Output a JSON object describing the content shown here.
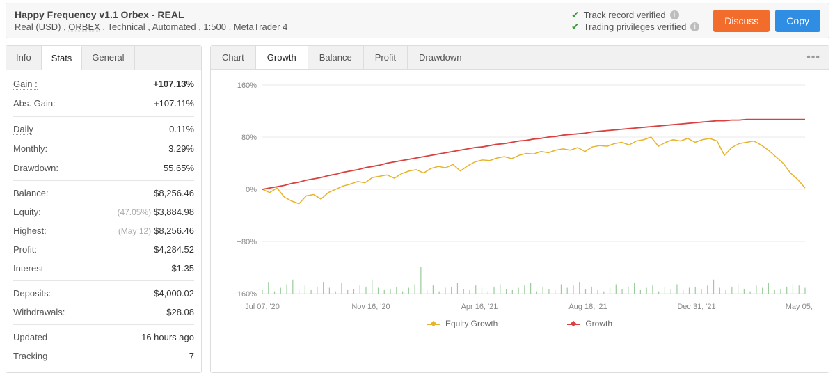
{
  "header": {
    "title": "Happy Frequency v1.1 Orbex - REAL",
    "subtitle_parts": {
      "pre": "Real (USD) , ",
      "broker": "ORBEX",
      "post": " , Technical , Automated , 1:500 , MetaTrader 4"
    },
    "verified_track": "Track record verified",
    "verified_priv": "Trading privileges verified",
    "discuss_label": "Discuss",
    "copy_label": "Copy"
  },
  "sidebar_tabs": {
    "info": "Info",
    "stats": "Stats",
    "general": "General",
    "active": "stats"
  },
  "stats": {
    "gain": {
      "label": "Gain :",
      "value": "+107.13%"
    },
    "abs_gain": {
      "label": "Abs. Gain:",
      "value": "+107.11%"
    },
    "daily": {
      "label": "Daily",
      "value": "0.11%"
    },
    "monthly": {
      "label": "Monthly:",
      "value": "3.29%"
    },
    "drawdown": {
      "label": "Drawdown:",
      "value": "55.65%"
    },
    "balance": {
      "label": "Balance:",
      "value": "$8,256.46"
    },
    "equity": {
      "label": "Equity:",
      "sub": "(47.05%)",
      "value": "$3,884.98"
    },
    "highest": {
      "label": "Highest:",
      "sub": "(May 12)",
      "value": "$8,256.46"
    },
    "profit": {
      "label": "Profit:",
      "value": "$4,284.52"
    },
    "interest": {
      "label": "Interest",
      "value": "-$1.35"
    },
    "deposits": {
      "label": "Deposits:",
      "value": "$4,000.02"
    },
    "withdrawals": {
      "label": "Withdrawals:",
      "value": "$28.08"
    },
    "updated": {
      "label": "Updated",
      "value": "16 hours ago"
    },
    "tracking": {
      "label": "Tracking",
      "value": "7"
    }
  },
  "chart_tabs": {
    "chart": "Chart",
    "growth": "Growth",
    "balance": "Balance",
    "profit": "Profit",
    "drawdown": "Drawdown",
    "active": "growth"
  },
  "chart": {
    "type": "line",
    "ylim": [
      -160,
      160
    ],
    "ytick_step": 80,
    "y_ticks": [
      "160%",
      "80%",
      "0%",
      "−80%",
      "−160%"
    ],
    "x_ticks": [
      "Jul 07, '20",
      "Nov 16, '20",
      "Apr 16, '21",
      "Aug 18, '21",
      "Dec 31, '21",
      "May 05, '22"
    ],
    "background_color": "#ffffff",
    "grid_color": "#e8e8e8",
    "series": {
      "equity_growth": {
        "label": "Equity Growth",
        "color": "#e7b32a",
        "width": 1.5,
        "values": [
          0,
          -5,
          2,
          -12,
          -18,
          -22,
          -10,
          -8,
          -15,
          -5,
          0,
          5,
          8,
          12,
          10,
          18,
          20,
          22,
          17,
          24,
          28,
          30,
          25,
          32,
          35,
          33,
          38,
          28,
          36,
          42,
          45,
          44,
          48,
          50,
          47,
          52,
          55,
          54,
          58,
          56,
          60,
          62,
          60,
          64,
          58,
          65,
          67,
          66,
          70,
          72,
          68,
          74,
          76,
          80,
          66,
          72,
          76,
          74,
          78,
          72,
          76,
          78,
          74,
          52,
          64,
          70,
          72,
          74,
          68,
          60,
          50,
          40,
          25,
          15,
          2
        ]
      },
      "growth": {
        "label": "Growth",
        "color": "#d94040",
        "width": 1.8,
        "values": [
          0,
          2,
          4,
          6,
          9,
          11,
          14,
          16,
          18,
          21,
          23,
          26,
          28,
          30,
          33,
          35,
          37,
          40,
          42,
          44,
          46,
          48,
          50,
          52,
          54,
          56,
          58,
          60,
          62,
          64,
          65,
          67,
          69,
          70,
          72,
          74,
          75,
          77,
          78,
          80,
          81,
          83,
          84,
          85,
          86,
          88,
          89,
          90,
          91,
          92,
          93,
          94,
          95,
          96,
          97,
          98,
          99,
          100,
          101,
          102,
          103,
          104,
          105,
          105,
          106,
          106,
          107,
          107,
          107,
          107,
          107,
          107,
          107,
          107,
          107
        ]
      }
    },
    "volume_color": "#9acb9a",
    "volume": [
      0.03,
      0.1,
      0.02,
      0.05,
      0.08,
      0.12,
      0.04,
      0.07,
      0.03,
      0.06,
      0.1,
      0.05,
      0.02,
      0.09,
      0.03,
      0.04,
      0.07,
      0.06,
      0.12,
      0.05,
      0.03,
      0.04,
      0.06,
      0.02,
      0.05,
      0.08,
      0.23,
      0.03,
      0.07,
      0.02,
      0.05,
      0.06,
      0.09,
      0.04,
      0.03,
      0.07,
      0.05,
      0.02,
      0.06,
      0.08,
      0.04,
      0.03,
      0.05,
      0.07,
      0.09,
      0.02,
      0.06,
      0.04,
      0.03,
      0.08,
      0.05,
      0.07,
      0.1,
      0.04,
      0.06,
      0.03,
      0.02,
      0.05,
      0.08,
      0.04,
      0.06,
      0.09,
      0.03,
      0.05,
      0.07,
      0.02,
      0.06,
      0.04,
      0.08,
      0.03,
      0.05,
      0.06,
      0.04,
      0.07,
      0.12,
      0.05,
      0.03,
      0.06,
      0.08,
      0.04,
      0.02,
      0.07,
      0.05,
      0.09,
      0.03,
      0.04,
      0.06,
      0.08,
      0.07,
      0.05
    ]
  },
  "legend": {
    "equity": "Equity Growth",
    "growth": "Growth"
  }
}
